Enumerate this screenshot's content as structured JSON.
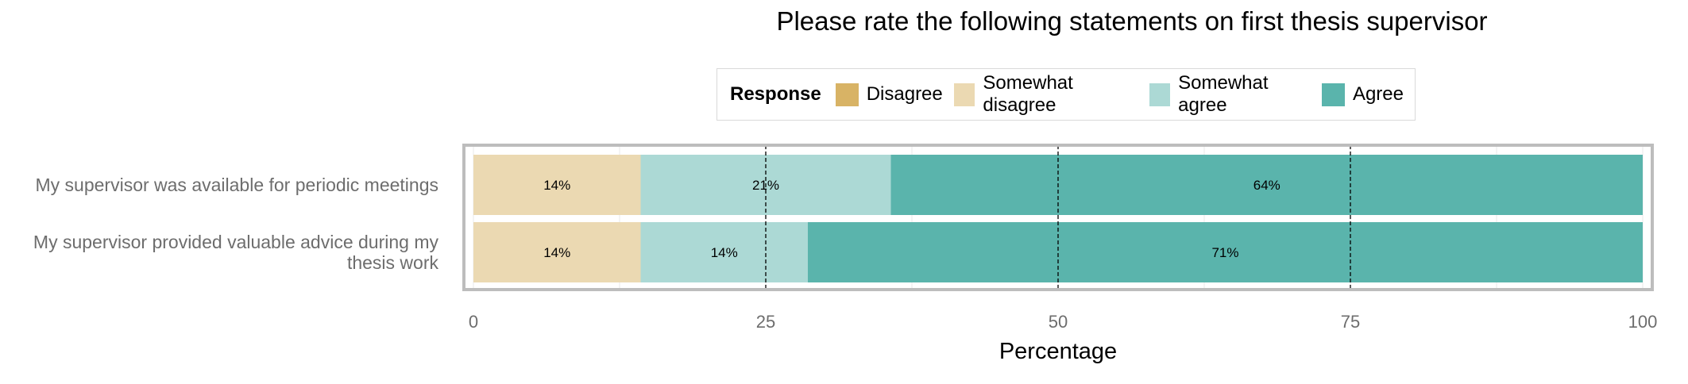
{
  "chart_data": {
    "type": "bar",
    "orientation": "horizontal",
    "stacked": true,
    "title": "Please rate the following statements on first thesis supervisor",
    "xlabel": "Percentage",
    "ylabel": "",
    "xlim": [
      0,
      100
    ],
    "xticks": [
      0,
      25,
      50,
      75,
      100
    ],
    "reference_lines": [
      25,
      50,
      75
    ],
    "legend": {
      "title": "Response",
      "placement": "top"
    },
    "categories": [
      "My supervisor was available for periodic meetings",
      "My supervisor provided valuable advice during my thesis work"
    ],
    "series": [
      {
        "name": "Disagree",
        "color": "#d8b365",
        "values": [
          0,
          0
        ],
        "labels": [
          "",
          ""
        ]
      },
      {
        "name": "Somewhat disagree",
        "color": "#ebd9b2",
        "values": [
          14.3,
          14.3
        ],
        "labels": [
          "14%",
          "14%"
        ]
      },
      {
        "name": "Somewhat agree",
        "color": "#acd9d5",
        "values": [
          21.4,
          14.3
        ],
        "labels": [
          "21%",
          "14%"
        ]
      },
      {
        "name": "Agree",
        "color": "#5ab4ac",
        "values": [
          64.3,
          71.4
        ],
        "labels": [
          "64%",
          "71%"
        ]
      }
    ]
  }
}
